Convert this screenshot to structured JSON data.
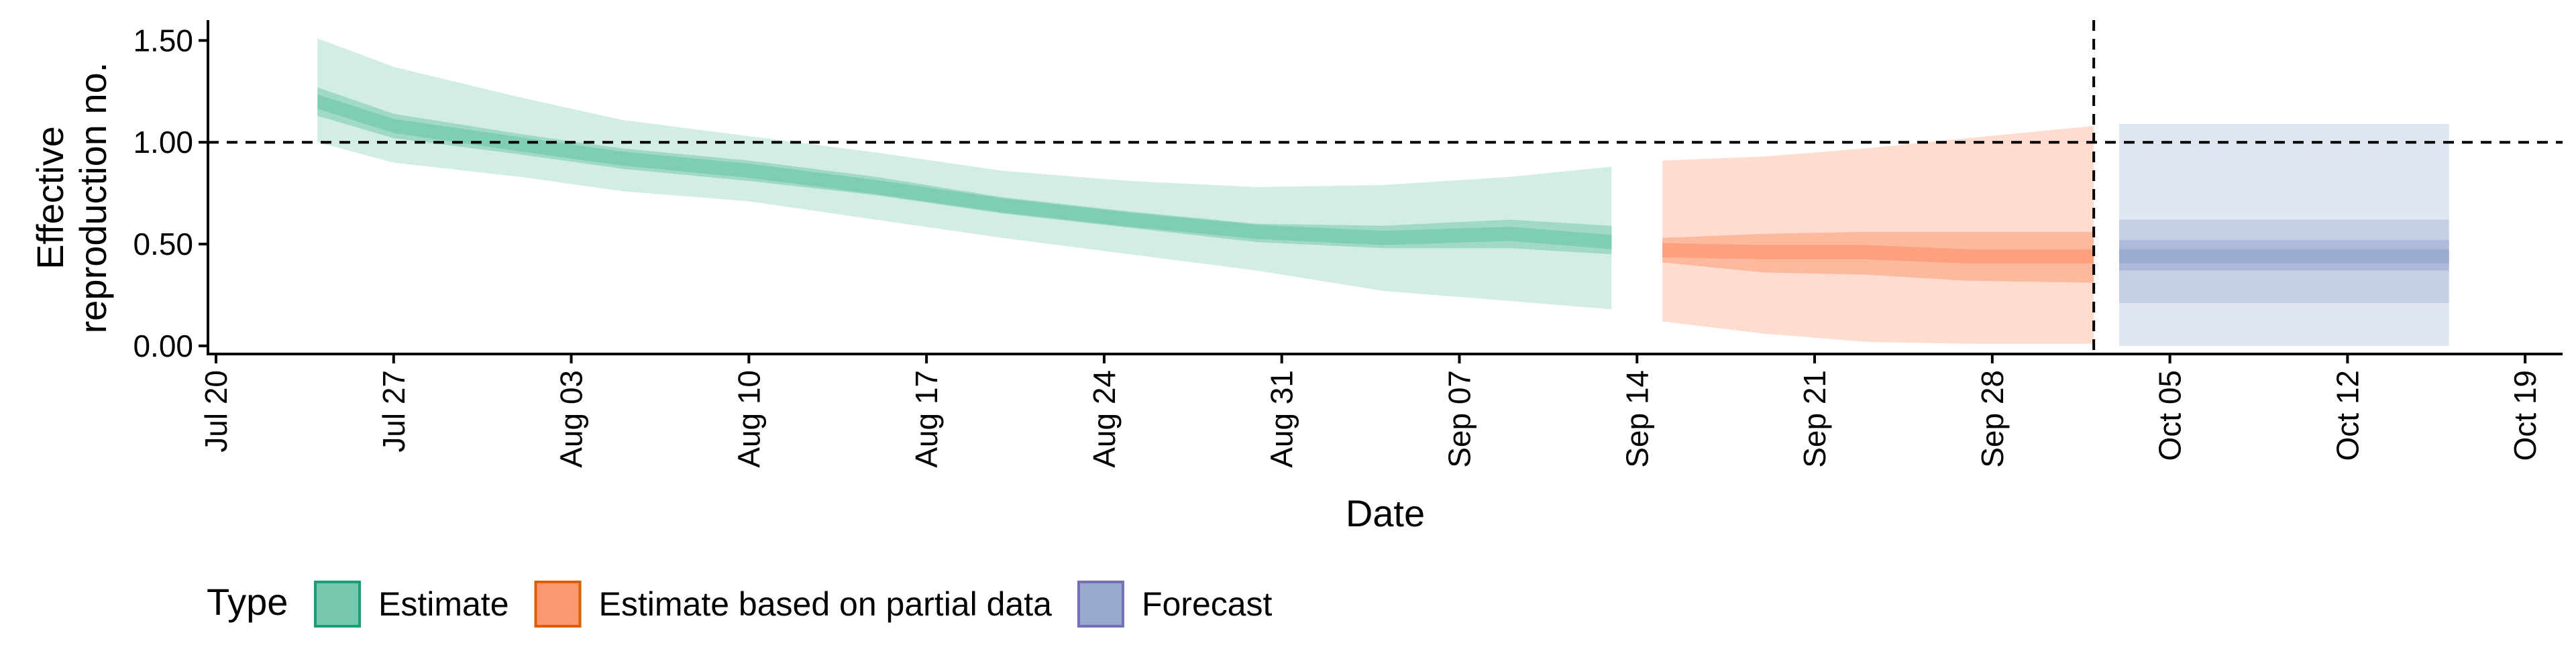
{
  "chart_data": {
    "type": "area",
    "xlabel": "Date",
    "ylabel": [
      "Effective",
      "reproduction no."
    ],
    "ylim": [
      -0.04,
      1.6
    ],
    "xlim": [
      "2020-07-20",
      "2020-10-20"
    ],
    "x_ticks": [
      "Jul 20",
      "Jul 27",
      "Aug 03",
      "Aug 10",
      "Aug 17",
      "Aug 24",
      "Aug 31",
      "Sep 07",
      "Sep 14",
      "Sep 21",
      "Sep 28",
      "Oct 05",
      "Oct 12",
      "Oct 19"
    ],
    "x_tick_dates": [
      "2020-07-20",
      "2020-07-27",
      "2020-08-03",
      "2020-08-10",
      "2020-08-17",
      "2020-08-24",
      "2020-08-31",
      "2020-09-07",
      "2020-09-14",
      "2020-09-21",
      "2020-09-28",
      "2020-10-05",
      "2020-10-12",
      "2020-10-19"
    ],
    "y_ticks": [
      "0.00",
      "0.50",
      "1.00",
      "1.50"
    ],
    "y_tick_values": [
      0,
      0.5,
      1.0,
      1.5
    ],
    "reference_lines": {
      "horizontal_y": 1.0,
      "vertical_x": "2020-10-02",
      "style": "dashed"
    },
    "grid": false,
    "legend": {
      "title": "Type",
      "position": "bottom-left"
    },
    "series": [
      {
        "name": "Estimate",
        "color": "#1b9e77",
        "fill": "#66c2a5",
        "x": [
          "2020-07-24",
          "2020-07-27",
          "2020-08-01",
          "2020-08-05",
          "2020-08-10",
          "2020-08-15",
          "2020-08-20",
          "2020-08-25",
          "2020-08-30",
          "2020-09-04",
          "2020-09-09",
          "2020-09-13"
        ],
        "median": [
          1.2,
          1.08,
          0.99,
          0.92,
          0.86,
          0.78,
          0.69,
          0.62,
          0.56,
          0.53,
          0.55,
          0.51
        ],
        "lo50": [
          1.13,
          1.02,
          0.94,
          0.87,
          0.81,
          0.74,
          0.65,
          0.58,
          0.51,
          0.48,
          0.48,
          0.45
        ],
        "hi50": [
          1.27,
          1.14,
          1.04,
          0.97,
          0.91,
          0.83,
          0.73,
          0.66,
          0.6,
          0.59,
          0.62,
          0.59
        ],
        "lo90": [
          1.0,
          0.9,
          0.83,
          0.76,
          0.71,
          0.62,
          0.53,
          0.45,
          0.37,
          0.27,
          0.22,
          0.18
        ],
        "hi90": [
          1.51,
          1.37,
          1.22,
          1.11,
          1.03,
          0.95,
          0.86,
          0.81,
          0.78,
          0.79,
          0.83,
          0.88
        ]
      },
      {
        "name": "Estimate based on partial data",
        "color": "#d95f02",
        "fill": "#fc8d62",
        "x": [
          "2020-09-15",
          "2020-09-19",
          "2020-09-23",
          "2020-09-27",
          "2020-10-02"
        ],
        "median": [
          0.47,
          0.46,
          0.46,
          0.44,
          0.44
        ],
        "lo50": [
          0.41,
          0.36,
          0.35,
          0.32,
          0.31
        ],
        "hi50": [
          0.53,
          0.55,
          0.56,
          0.56,
          0.56
        ],
        "lo90": [
          0.12,
          0.06,
          0.02,
          0.01,
          0.01
        ],
        "hi90": [
          0.91,
          0.93,
          0.97,
          1.02,
          1.08
        ]
      },
      {
        "name": "Forecast",
        "color": "#7570b3",
        "fill": "#8da0cb",
        "x": [
          "2020-10-03",
          "2020-10-16"
        ],
        "median": [
          0.44,
          0.44
        ],
        "lo50": [
          0.37,
          0.37
        ],
        "hi50": [
          0.52,
          0.52
        ],
        "lo90": [
          0.21,
          0.21
        ],
        "hi90": [
          0.62,
          0.62
        ],
        "lo95": [
          0.0,
          0.0
        ],
        "hi95": [
          1.09,
          1.09
        ]
      }
    ]
  }
}
